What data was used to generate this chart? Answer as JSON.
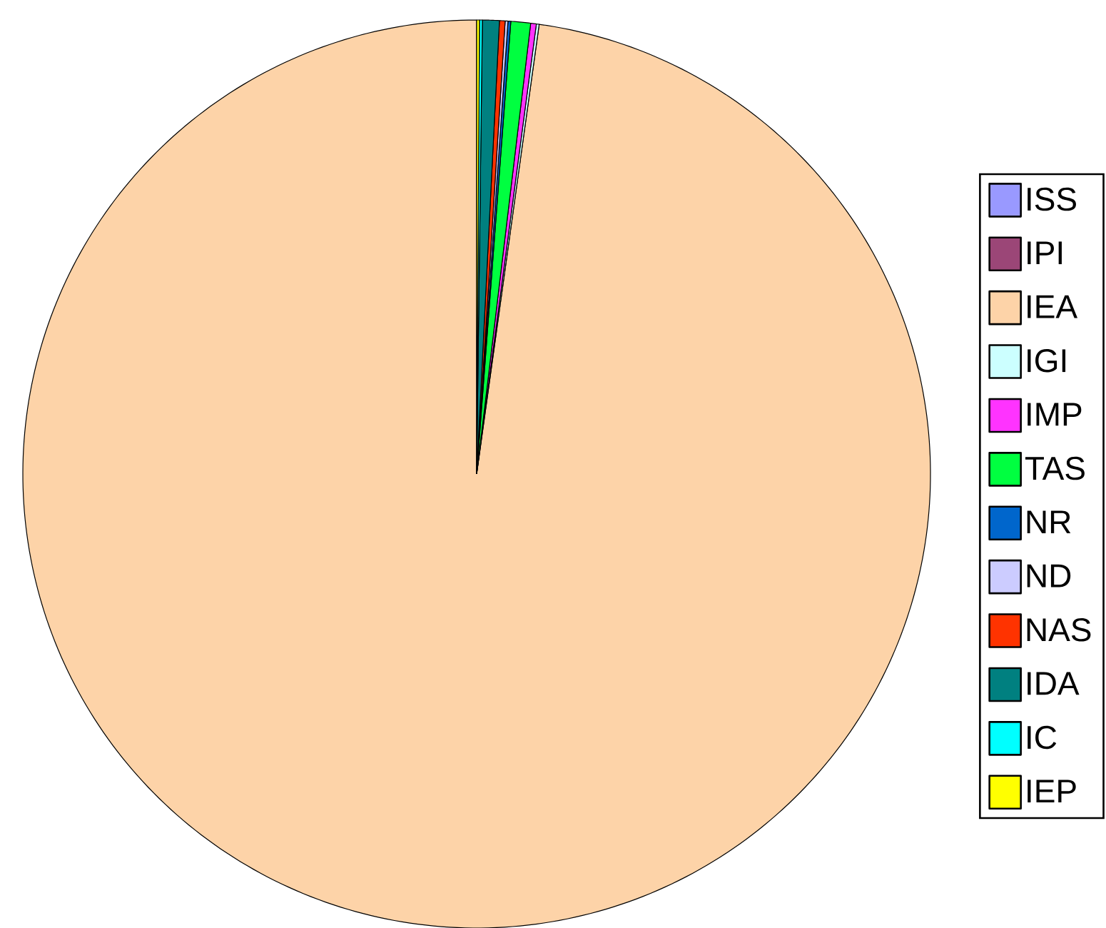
{
  "chart_data": {
    "type": "pie",
    "categories": [
      "ISS",
      "IPI",
      "IEA",
      "IGI",
      "IMP",
      "TAS",
      "NR",
      "ND",
      "NAS",
      "IDA",
      "IC",
      "IEP"
    ],
    "values": [
      0,
      0,
      97.8,
      0.1,
      0.2,
      0.7,
      0.1,
      0.1,
      0.2,
      0.6,
      0.1,
      0.1
    ],
    "colors": [
      "#9999ff",
      "#9b4677",
      "#fdd3a8",
      "#ccffff",
      "#ff33ff",
      "#00ff40",
      "#0066cc",
      "#ccccff",
      "#ff3300",
      "#008080",
      "#00ffff",
      "#ffff00"
    ],
    "legend": "right"
  }
}
